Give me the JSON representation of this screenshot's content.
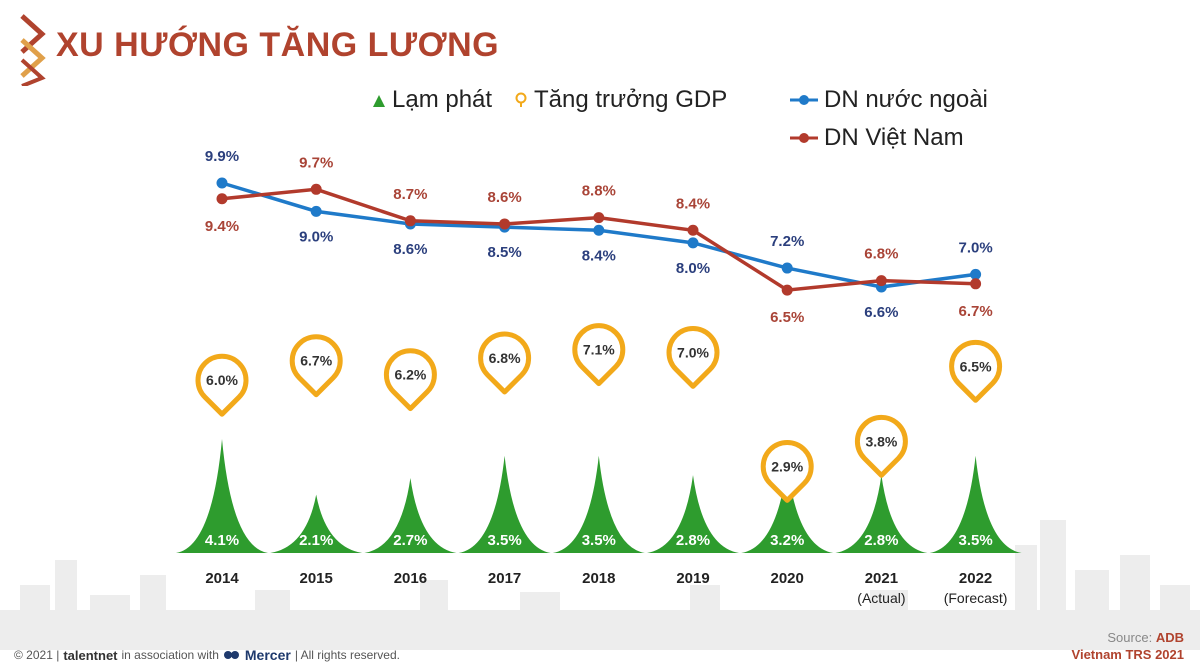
{
  "title": "XU HƯỚNG TĂNG LƯƠNG",
  "legend": {
    "inflation": "Lạm phát",
    "gdp": "Tăng trưởng GDP",
    "foreign": "DN nước ngoài",
    "vietnam": "DN Việt Nam"
  },
  "colors": {
    "title": "#b0432e",
    "inflation": "#2e9c2e",
    "gdp": "#f2a91a",
    "foreign": "#1f7ac9",
    "foreign_label": "#2b3f7d",
    "vietnam": "#b23a2c",
    "vietnam_label": "#a94437"
  },
  "chart_data": {
    "type": "line",
    "categories": [
      "2014",
      "2015",
      "2016",
      "2017",
      "2018",
      "2019",
      "2020",
      "2021",
      "2022"
    ],
    "category_sublabels": [
      "",
      "",
      "",
      "",
      "",
      "",
      "",
      "(Actual)",
      "(Forecast)"
    ],
    "series": [
      {
        "name": "DN nước ngoài",
        "values": [
          9.9,
          9.0,
          8.6,
          8.5,
          8.4,
          8.0,
          7.2,
          6.6,
          7.0
        ],
        "labels": [
          "9.9%",
          "9.0%",
          "8.6%",
          "8.5%",
          "8.4%",
          "8.0%",
          "7.2%",
          "6.6%",
          "7.0%"
        ]
      },
      {
        "name": "DN Việt Nam",
        "values": [
          9.4,
          9.7,
          8.7,
          8.6,
          8.8,
          8.4,
          6.5,
          6.8,
          6.7
        ],
        "labels": [
          "9.4%",
          "9.7%",
          "8.7%",
          "8.6%",
          "8.8%",
          "8.4%",
          "6.5%",
          "6.8%",
          "6.7%"
        ]
      },
      {
        "name": "Tăng trưởng GDP",
        "values": [
          6.0,
          6.7,
          6.2,
          6.8,
          7.1,
          7.0,
          2.9,
          3.8,
          6.5
        ],
        "labels": [
          "6.0%",
          "6.7%",
          "6.2%",
          "6.8%",
          "7.1%",
          "7.0%",
          "2.9%",
          "3.8%",
          "6.5%"
        ]
      },
      {
        "name": "Lạm phát",
        "values": [
          4.1,
          2.1,
          2.7,
          3.5,
          3.5,
          2.8,
          3.2,
          2.8,
          3.5
        ],
        "labels": [
          "4.1%",
          "2.1%",
          "2.7%",
          "3.5%",
          "3.5%",
          "2.8%",
          "3.2%",
          "2.8%",
          "3.5%"
        ]
      }
    ]
  },
  "footer": {
    "copyright": "© 2021 |",
    "brand": "talentnet",
    "association": "in association with",
    "mercer": "Mercer",
    "rights": "| All rights reserved.",
    "source_label": "Source:",
    "source_value": "ADB",
    "report": "Vietnam TRS 2021"
  }
}
